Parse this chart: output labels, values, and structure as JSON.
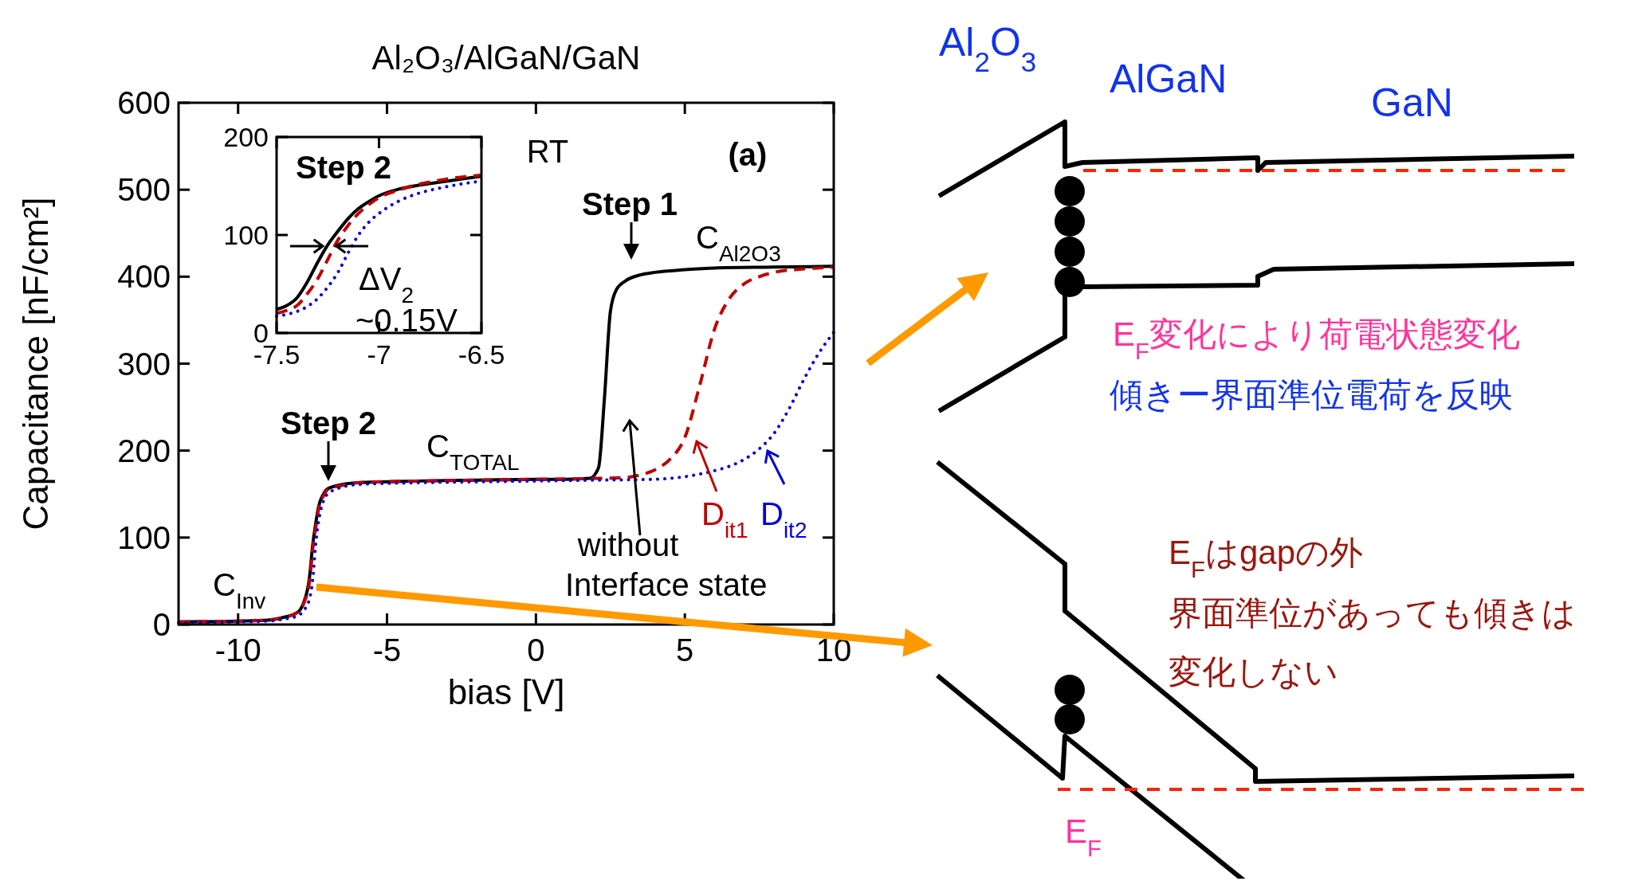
{
  "chart_data": [
    {
      "type": "line",
      "title": "Al₂O₃/AlGaN/GaN",
      "xlabel": "bias [V]",
      "ylabel": "Capacitance [nF/cm²]",
      "xlim": [
        -12,
        10
      ],
      "ylim": [
        0,
        600
      ],
      "xticks": [
        -10,
        -5,
        0,
        5,
        10
      ],
      "yticks": [
        0,
        100,
        200,
        300,
        400,
        500,
        600
      ],
      "series": [
        {
          "color": "#000000",
          "line_style": "solid",
          "x": [
            -12,
            -10,
            -9,
            -8.5,
            -8,
            -7.8,
            -7.6,
            -7.5,
            -7.4,
            -7.3,
            -7.1,
            -7,
            -6.5,
            -6,
            -4,
            -2,
            0,
            1,
            1.8,
            2.1,
            2.3,
            2.5,
            2.7,
            3,
            3.5,
            4,
            5,
            6,
            8,
            10
          ],
          "values": [
            3,
            4,
            5,
            8,
            14,
            25,
            55,
            90,
            115,
            135,
            152,
            156,
            161,
            163,
            165,
            166,
            167,
            167,
            168,
            180,
            260,
            360,
            385,
            395,
            402,
            405,
            408,
            410,
            411,
            412
          ]
        },
        {
          "color": "#c00000",
          "line_style": "dashed",
          "x": [
            -12,
            -10,
            -9,
            -8.5,
            -8,
            -7.8,
            -7.6,
            -7.5,
            -7.4,
            -7.3,
            -7.1,
            -7,
            -6.5,
            -6,
            -4,
            -2,
            0,
            2,
            3,
            3.5,
            4,
            4.5,
            5,
            5.5,
            6,
            6.5,
            7,
            7.5,
            8,
            9,
            10
          ],
          "values": [
            3,
            4,
            5,
            8,
            14,
            24,
            50,
            85,
            110,
            132,
            150,
            155,
            160,
            163,
            165,
            166,
            167,
            168,
            169,
            172,
            178,
            190,
            215,
            275,
            340,
            375,
            392,
            400,
            405,
            409,
            411
          ]
        },
        {
          "color": "#0000dd",
          "line_style": "dotted",
          "x": [
            -12,
            -10,
            -9,
            -8.5,
            -8,
            -7.8,
            -7.6,
            -7.5,
            -7.4,
            -7.3,
            -7.2,
            -7.1,
            -7,
            -6.5,
            -6,
            -4,
            -2,
            0,
            2,
            4,
            5,
            5.5,
            6,
            6.5,
            7,
            7.5,
            8,
            8.5,
            9,
            9.5,
            10
          ],
          "values": [
            2,
            3,
            4,
            6,
            10,
            16,
            30,
            50,
            90,
            118,
            135,
            145,
            150,
            158,
            161,
            163,
            164,
            165,
            166,
            167,
            170,
            173,
            177,
            182,
            190,
            202,
            220,
            248,
            282,
            312,
            336
          ]
        }
      ],
      "annotations": [
        "RT",
        "(a)",
        "Step 1",
        "C$_{Al2O3}$",
        "Step 2",
        "C$_{TOTAL}$",
        "C$_{Inv}$",
        "without",
        "Interface state",
        "D$_{it1}$",
        "D$_{it2}$"
      ]
    },
    {
      "type": "line",
      "xlim": [
        -7.5,
        -6.5
      ],
      "ylim": [
        0,
        200
      ],
      "xticks": [
        -7.5,
        -7,
        -6.5
      ],
      "yticks": [
        0,
        100,
        200
      ],
      "x": [
        -7.5,
        -7.45,
        -7.4,
        -7.35,
        -7.3,
        -7.25,
        -7.2,
        -7.15,
        -7.1,
        -7.05,
        -7,
        -6.9,
        -6.8,
        -6.7,
        -6.6,
        -6.5
      ],
      "series": [
        {
          "color": "#000000",
          "line_style": "solid",
          "values": [
            24,
            28,
            36,
            52,
            72,
            90,
            104,
            117,
            127,
            134,
            140,
            147,
            151,
            154,
            157,
            160
          ]
        },
        {
          "color": "#c00000",
          "line_style": "dashed",
          "values": [
            20,
            23,
            28,
            40,
            55,
            75,
            95,
            110,
            122,
            131,
            138,
            146,
            152,
            156,
            159,
            161
          ]
        },
        {
          "color": "#0000dd",
          "line_style": "dotted",
          "values": [
            17,
            19,
            22,
            27,
            35,
            47,
            62,
            82,
            100,
            113,
            122,
            135,
            143,
            148,
            152,
            155
          ]
        }
      ],
      "annotations": [
        "Step 2",
        "ΔV$_{2}$",
        "~0.15V"
      ]
    },
    {
      "type": "other",
      "annotations": [
        "Al$_{2}$O$_{3}$",
        "AlGaN",
        "GaN",
        "E$_{F}$変化により荷電状態変化",
        "傾きー界面準位電荷を反映",
        "E$_{F}$はgapの外",
        "界面準位があっても傾きは",
        "変化しない",
        "E$_{F}$"
      ]
    }
  ]
}
